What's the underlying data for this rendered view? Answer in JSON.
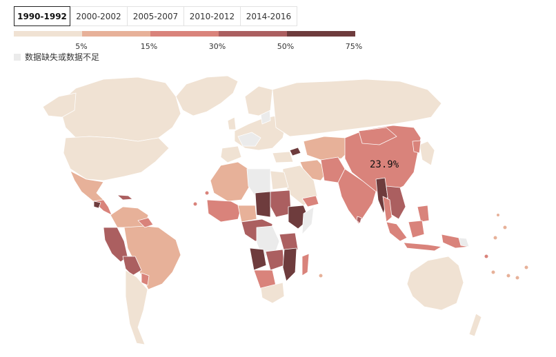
{
  "tabs": [
    {
      "label": "1990-1992",
      "active": true
    },
    {
      "label": "2000-2002",
      "active": false
    },
    {
      "label": "2005-2007",
      "active": false
    },
    {
      "label": "2010-2012",
      "active": false
    },
    {
      "label": "2014-2016",
      "active": false
    }
  ],
  "legend": {
    "colors": [
      "#f0e2d3",
      "#e7b199",
      "#d9837b",
      "#ab5f60",
      "#6e3c3d"
    ],
    "ticks": [
      "5%",
      "15%",
      "30%",
      "50%",
      "75%"
    ],
    "no_data_label": "数据缺失或数据不足",
    "no_data_color": "#ebebeb"
  },
  "map": {
    "ocean_color": "#ffffff",
    "border_color": "#ffffff",
    "highlight_region": "China",
    "highlight_value": "23.9%"
  }
}
